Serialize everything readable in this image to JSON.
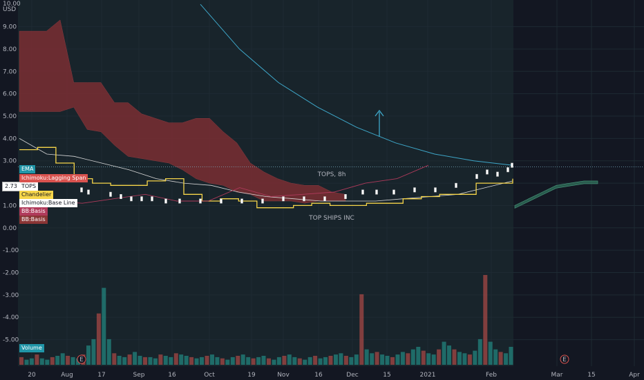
{
  "chart_data": {
    "type": "candlestick",
    "symbol": "TOPS",
    "interval": "8h",
    "watermark": "TOPS, 8h",
    "company": "TOP SHIPS INC",
    "currency": "USD",
    "y_top_label": "10.00",
    "y_ticks": [
      9,
      8,
      7,
      6,
      5,
      4,
      3,
      2,
      1,
      0,
      -1,
      -2,
      -3,
      -4,
      -5
    ],
    "y_tick_labels": [
      "9.00",
      "8.00",
      "7.00",
      "6.00",
      "5.00",
      "4.00",
      "3.00",
      "",
      "1.00",
      "0.00",
      "-1.00",
      "-2.00",
      "-3.00",
      "-4.00",
      "-5.00"
    ],
    "ylim": [
      -5.6,
      10.1
    ],
    "x_tick_labels": [
      "20",
      "Aug",
      "17",
      "Sep",
      "16",
      "Oct",
      "19",
      "Nov",
      "16",
      "Dec",
      "15",
      "2021",
      "Feb",
      "Mar",
      "15",
      "Apr"
    ],
    "last_price": "2.73",
    "last_price_symbol": "TOPS",
    "indicators": [
      {
        "name": "EMA",
        "color": "#2196a8"
      },
      {
        "name": "Ichimoku:Lagging Span",
        "color": "#e05555"
      },
      {
        "name": "TOPS",
        "color": "#ffffff"
      },
      {
        "name": "Chandelier",
        "color": "#f7d64a"
      },
      {
        "name": "Ichimoku:Base Line",
        "color": "#ffffff"
      },
      {
        "name": "BB:Basis",
        "color": "#b03a5b"
      },
      {
        "name": "BB:Basis",
        "color": "#8a3535"
      }
    ],
    "volume_label": "Volume",
    "earnings_marker": "E",
    "series": {
      "cloud_upper": [
        8.8,
        8.8,
        8.8,
        9.3,
        6.5,
        6.5,
        6.5,
        5.6,
        5.6,
        5.1,
        4.9,
        4.7,
        4.7,
        4.9,
        4.9,
        4.3,
        3.8,
        2.9,
        2.5,
        2.2,
        2.0,
        1.9,
        1.9,
        1.6,
        1.5
      ],
      "cloud_lower": [
        5.2,
        5.2,
        5.2,
        5.2,
        5.4,
        4.4,
        4.3,
        3.7,
        3.2,
        3.1,
        3.0,
        2.9,
        2.6,
        2.2,
        2.0,
        1.9,
        1.6,
        1.5,
        1.2,
        1.2,
        1.2,
        1.1,
        1.2,
        1.2,
        1.2
      ],
      "ema_curve": [
        10.0,
        8.0,
        6.5,
        5.4,
        4.5,
        3.8,
        3.3,
        3.0,
        2.8
      ],
      "lagging_span": [
        1.1,
        1.2,
        1.1,
        1.3,
        1.5,
        1.2,
        1.2,
        1.8,
        1.4,
        1.5,
        1.6,
        2.0,
        2.2,
        2.8
      ],
      "chandelier": [
        3.5,
        3.6,
        2.9,
        2.2,
        2.0,
        1.9,
        1.9,
        2.1,
        2.2,
        1.5,
        1.2,
        1.3,
        1.2,
        0.9,
        0.9,
        1.0,
        1.1,
        1.0,
        1.0,
        1.1,
        1.1,
        1.3,
        1.4,
        1.5,
        1.5,
        2.0,
        2.0,
        2.2
      ],
      "base_line": [
        4.0,
        3.3,
        3.2,
        2.9,
        2.6,
        2.2,
        2.0,
        1.9,
        1.6,
        1.4,
        1.3,
        1.2,
        1.2,
        1.2,
        1.3,
        1.4,
        1.5,
        1.8,
        2.1
      ],
      "forward_cloud": [
        1.0,
        1.3,
        1.6,
        1.9,
        2.0,
        2.1,
        2.1
      ]
    },
    "volume_bars": [
      6,
      4,
      5,
      8,
      5,
      4,
      6,
      7,
      9,
      7,
      6,
      5,
      8,
      15,
      20,
      40,
      60,
      20,
      9,
      7,
      6,
      8,
      10,
      7,
      6,
      6,
      5,
      8,
      7,
      6,
      9,
      8,
      7,
      6,
      5,
      6,
      7,
      8,
      6,
      5,
      4,
      6,
      7,
      8,
      6,
      5,
      6,
      7,
      5,
      4,
      6,
      7,
      8,
      6,
      5,
      4,
      6,
      7,
      5,
      6,
      7,
      8,
      9,
      7,
      6,
      8,
      55,
      12,
      9,
      10,
      8,
      7,
      6,
      8,
      10,
      9,
      12,
      14,
      11,
      9,
      8,
      12,
      18,
      15,
      12,
      10,
      9,
      8,
      11,
      20,
      70,
      18,
      12,
      10,
      9,
      14
    ],
    "annotation": "up-arrow"
  }
}
